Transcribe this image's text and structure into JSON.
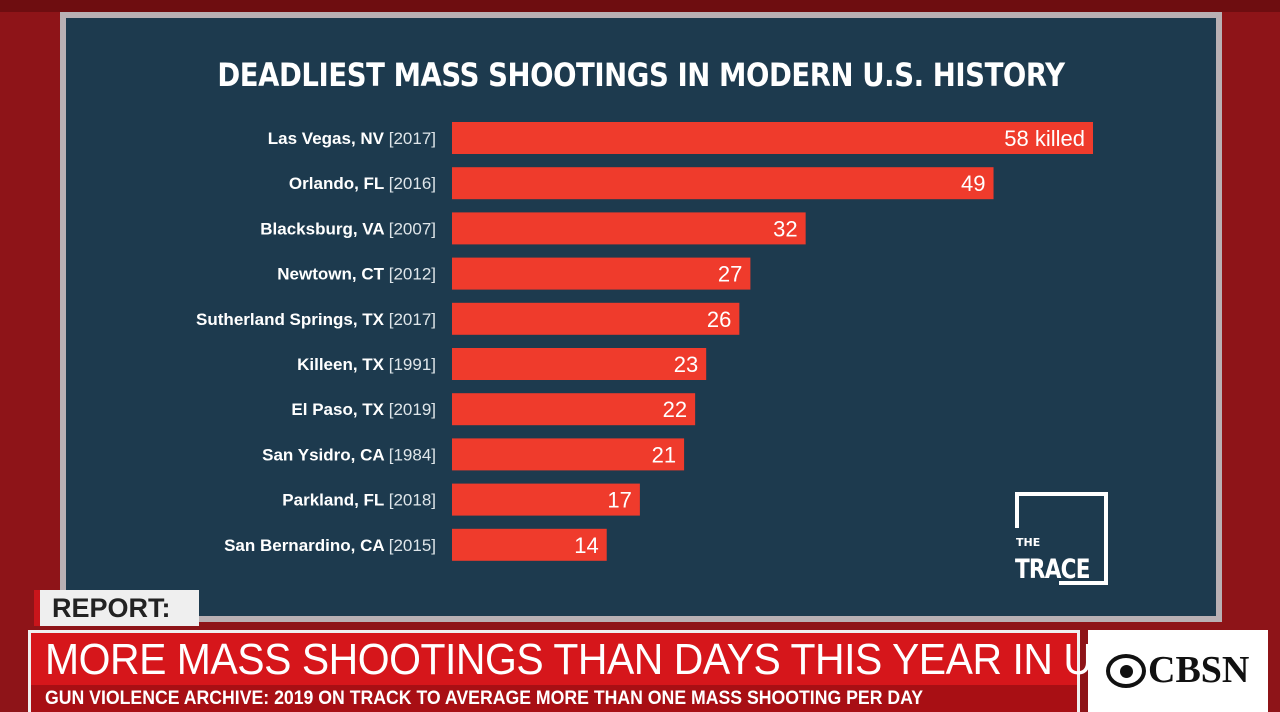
{
  "chart_data": {
    "type": "bar",
    "title": "DEADLIEST MASS SHOOTINGS IN MODERN U.S. HISTORY",
    "categories": [
      {
        "place": "Las Vegas, NV",
        "year": "[2017]"
      },
      {
        "place": "Orlando, FL",
        "year": "[2016]"
      },
      {
        "place": "Blacksburg, VA",
        "year": "[2007]"
      },
      {
        "place": "Newtown, CT",
        "year": "[2012]"
      },
      {
        "place": "Sutherland Springs, TX",
        "year": "[2017]"
      },
      {
        "place": "Killeen, TX",
        "year": "[1991]"
      },
      {
        "place": "El Paso, TX",
        "year": "[2019]"
      },
      {
        "place": "San Ysidro, CA",
        "year": "[1984]"
      },
      {
        "place": "Parkland, FL",
        "year": "[2018]"
      },
      {
        "place": "San Bernardino, CA",
        "year": "[2015]"
      }
    ],
    "values": [
      58,
      49,
      32,
      27,
      26,
      23,
      22,
      21,
      17,
      14
    ],
    "value_labels": [
      "58 killed",
      "49",
      "32",
      "27",
      "26",
      "23",
      "22",
      "21",
      "17",
      "14"
    ],
    "orientation": "horizontal",
    "xlim": [
      0,
      58
    ],
    "grid": false,
    "bar_color": "#ef3b2c"
  },
  "logo": {
    "line1": "THE",
    "line2": "TRACE"
  },
  "lower_third": {
    "tag": "REPORT:",
    "headline": "MORE MASS SHOOTINGS THAN DAYS THIS YEAR IN U.S.",
    "subline": "GUN VIOLENCE ARCHIVE: 2019 ON TRACK TO AVERAGE MORE THAN ONE MASS SHOOTING PER DAY"
  },
  "network": {
    "name": "CBSN"
  }
}
